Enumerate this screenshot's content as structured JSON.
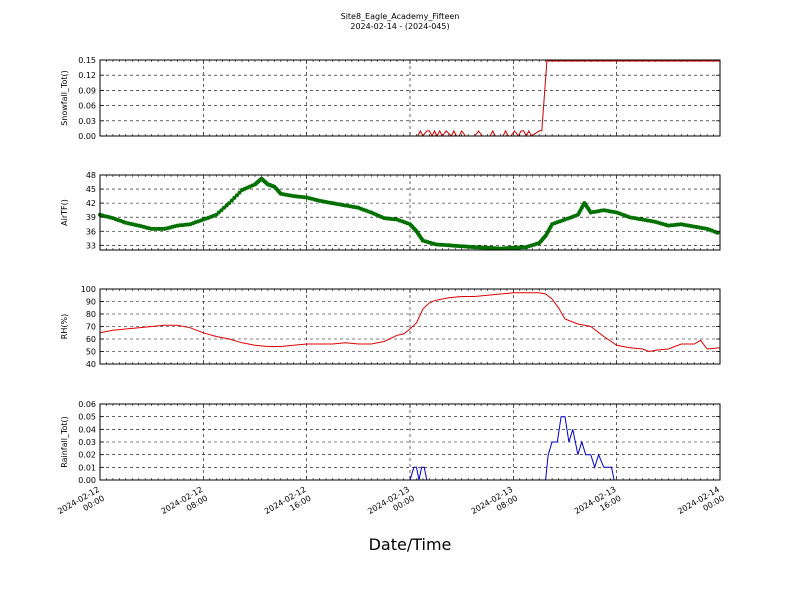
{
  "title_line1": "Site8_Eagle_Academy_Fifteen",
  "title_line2": "2024-02-14 - (2024-045)",
  "xlabel": "Date/Time",
  "x_ticks": [
    {
      "t": 0,
      "line1": "2024-02-12",
      "line2": "00:00"
    },
    {
      "t": 8,
      "line1": "2024-02-12",
      "line2": "08:00"
    },
    {
      "t": 16,
      "line1": "2024-02-12",
      "line2": "16:00"
    },
    {
      "t": 24,
      "line1": "2024-02-13",
      "line2": "00:00"
    },
    {
      "t": 32,
      "line1": "2024-02-13",
      "line2": "08:00"
    },
    {
      "t": 40,
      "line1": "2024-02-13",
      "line2": "16:00"
    },
    {
      "t": 48,
      "line1": "2024-02-14",
      "line2": "00:00"
    }
  ],
  "chart_data": [
    {
      "type": "line",
      "ylabel": "Snowfall_Tot()",
      "color": "#d00000",
      "ylim": [
        0,
        0.15
      ],
      "yticks": [
        "0.00",
        "0.03",
        "0.06",
        "0.09",
        "0.12",
        "0.15"
      ],
      "grid": true,
      "markers": false,
      "x": [
        0,
        24.0,
        24.6,
        24.8,
        25.0,
        25.3,
        25.5,
        25.7,
        25.9,
        26.1,
        26.3,
        26.5,
        26.8,
        27.2,
        27.4,
        27.6,
        27.8,
        28.0,
        28.3,
        28.6,
        29.0,
        29.3,
        29.6,
        29.9,
        30.2,
        30.4,
        30.6,
        30.8,
        31.0,
        31.2,
        31.4,
        31.6,
        31.8,
        32.1,
        32.4,
        32.6,
        32.8,
        33.0,
        33.2,
        33.4,
        34.0,
        34.2,
        34.6,
        48
      ],
      "y": [
        0,
        0,
        0,
        0.01,
        0,
        0.01,
        0.01,
        0,
        0.01,
        0,
        0.01,
        0,
        0.01,
        0,
        0.01,
        0,
        0,
        0.01,
        0,
        0,
        0,
        0.01,
        0,
        0,
        0,
        0.01,
        0,
        0,
        0,
        0,
        0.01,
        0,
        0,
        0.01,
        0,
        0.01,
        0.01,
        0,
        0.01,
        0,
        0.01,
        0.01,
        0.148,
        0.148
      ]
    },
    {
      "type": "line",
      "ylabel": "AirTF()",
      "color": "#007000",
      "ylim": [
        32,
        48
      ],
      "yticks": [
        "33",
        "36",
        "39",
        "42",
        "45",
        "48"
      ],
      "grid": true,
      "markers": true,
      "x": [
        0,
        1,
        2,
        3,
        4,
        5,
        6,
        7,
        8,
        9,
        10,
        11,
        12,
        12.5,
        13,
        13.5,
        14,
        15,
        16,
        17,
        18,
        19,
        20,
        21,
        22,
        23,
        24,
        24.5,
        25,
        26,
        27,
        28,
        29,
        30,
        31,
        32,
        33,
        34,
        34.5,
        35,
        36,
        37,
        37.5,
        38,
        39,
        40,
        41,
        42,
        43,
        44,
        45,
        46,
        47,
        48
      ],
      "y": [
        39.5,
        38.8,
        37.8,
        37.2,
        36.5,
        36.5,
        37.2,
        37.5,
        38.5,
        39.5,
        42.0,
        44.8,
        46.0,
        47.2,
        46.0,
        45.5,
        44.0,
        43.5,
        43.2,
        42.5,
        42.0,
        41.5,
        41.0,
        40.0,
        38.8,
        38.5,
        37.5,
        36.0,
        34.0,
        33.2,
        33.0,
        32.8,
        32.6,
        32.5,
        32.3,
        32.5,
        32.6,
        33.5,
        35.0,
        37.5,
        38.5,
        39.5,
        42.0,
        40.0,
        40.5,
        40.0,
        39.0,
        38.5,
        38.0,
        37.2,
        37.5,
        37.0,
        36.5,
        35.5
      ]
    },
    {
      "type": "line",
      "ylabel": "RH(%)",
      "color": "#e00000",
      "ylim": [
        40,
        100
      ],
      "yticks": [
        "40",
        "50",
        "60",
        "70",
        "80",
        "90",
        "100"
      ],
      "grid": true,
      "markers": false,
      "x": [
        0,
        1,
        2,
        3,
        4,
        5,
        6,
        7,
        8,
        9,
        10,
        11,
        12,
        13,
        14,
        15,
        16,
        17,
        18,
        19,
        20,
        21,
        22,
        23,
        23.5,
        24,
        24.5,
        25,
        25.5,
        26,
        27,
        28,
        29,
        30,
        31,
        32,
        33,
        34,
        34.5,
        35,
        35.5,
        36,
        37,
        38,
        39,
        40,
        41,
        42,
        42.5,
        43,
        44,
        45,
        46,
        46.5,
        47,
        48
      ],
      "y": [
        65,
        67,
        68,
        69,
        70,
        71,
        71,
        69,
        65,
        62,
        60,
        57,
        55,
        54,
        54,
        55,
        56,
        56,
        56,
        57,
        56,
        56,
        58,
        63,
        64,
        68,
        73,
        84,
        89,
        91,
        93,
        94,
        94,
        95,
        96,
        97,
        97,
        97,
        96,
        92,
        85,
        76,
        72,
        70,
        62,
        55,
        53,
        52,
        50,
        51,
        52,
        56,
        56,
        59,
        52,
        53
      ]
    },
    {
      "type": "line",
      "ylabel": "Rainfall_Tot()",
      "color": "#0000cc",
      "ylim": [
        0,
        0.06
      ],
      "yticks": [
        "0.00",
        "0.01",
        "0.02",
        "0.03",
        "0.04",
        "0.05",
        "0.06"
      ],
      "grid": true,
      "markers": false,
      "x": [
        0,
        24.0,
        24.3,
        24.5,
        24.7,
        24.9,
        25.1,
        25.3,
        34.5,
        34.7,
        35.0,
        35.4,
        35.7,
        36.0,
        36.3,
        36.6,
        37.0,
        37.3,
        37.6,
        38.0,
        38.3,
        38.6,
        39.0,
        39.3,
        39.6,
        39.8,
        48
      ],
      "y": [
        0,
        0,
        0.01,
        0.01,
        0,
        0.01,
        0.01,
        0,
        0,
        0.02,
        0.03,
        0.03,
        0.05,
        0.05,
        0.03,
        0.04,
        0.02,
        0.03,
        0.02,
        0.02,
        0.01,
        0.02,
        0.01,
        0.01,
        0.01,
        0,
        0
      ]
    }
  ]
}
